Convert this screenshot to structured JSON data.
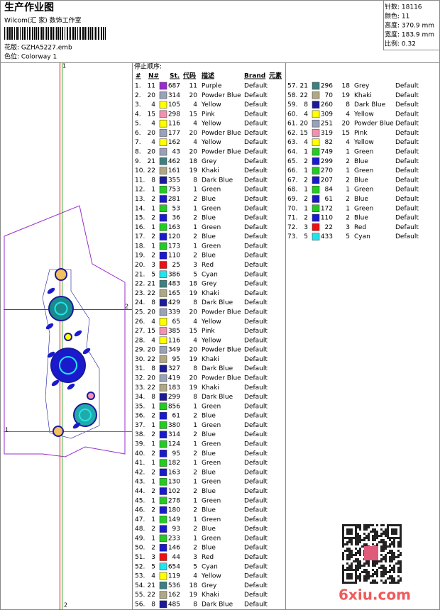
{
  "header": {
    "title": "生产作业图",
    "studio": "Wilcom(汇 家) 数饰工作室",
    "pattern": "花版:  GZHA5227.emb",
    "colorway": "色位:  Colorway 1",
    "stats": [
      "针数:  18116",
      "颜色:  11",
      "高度:  370.9 mm",
      "宽度:  183.9 mm",
      "比例:  0.32"
    ]
  },
  "design": {
    "markers": [
      "1",
      "2",
      "1",
      "2"
    ]
  },
  "table": {
    "caption": "停止顺序:",
    "columns": [
      "#",
      "N#",
      "St.",
      "代码",
      "描述",
      "Brand",
      "元素"
    ],
    "rows": [
      [
        "1.",
        "11",
        "687",
        "11",
        "Purple",
        "Default"
      ],
      [
        "2.",
        "20",
        "314",
        "20",
        "Powder Blue",
        "Default"
      ],
      [
        "3.",
        "4",
        "105",
        "4",
        "Yellow",
        "Default"
      ],
      [
        "4.",
        "15",
        "298",
        "15",
        "Pink",
        "Default"
      ],
      [
        "5.",
        "4",
        "116",
        "4",
        "Yellow",
        "Default"
      ],
      [
        "6.",
        "20",
        "177",
        "20",
        "Powder Blue",
        "Default"
      ],
      [
        "7.",
        "4",
        "162",
        "4",
        "Yellow",
        "Default"
      ],
      [
        "8.",
        "20",
        "43",
        "20",
        "Powder Blue",
        "Default"
      ],
      [
        "9.",
        "21",
        "462",
        "18",
        "Grey",
        "Default"
      ],
      [
        "10.",
        "22",
        "161",
        "19",
        "Khaki",
        "Default"
      ],
      [
        "11.",
        "8",
        "355",
        "8",
        "Dark Blue",
        "Default"
      ],
      [
        "12.",
        "1",
        "753",
        "1",
        "Green",
        "Default"
      ],
      [
        "13.",
        "2",
        "281",
        "2",
        "Blue",
        "Default"
      ],
      [
        "14.",
        "1",
        "53",
        "1",
        "Green",
        "Default"
      ],
      [
        "15.",
        "2",
        "36",
        "2",
        "Blue",
        "Default"
      ],
      [
        "16.",
        "1",
        "163",
        "1",
        "Green",
        "Default"
      ],
      [
        "17.",
        "2",
        "120",
        "2",
        "Blue",
        "Default"
      ],
      [
        "18.",
        "1",
        "173",
        "1",
        "Green",
        "Default"
      ],
      [
        "19.",
        "2",
        "110",
        "2",
        "Blue",
        "Default"
      ],
      [
        "20.",
        "3",
        "25",
        "3",
        "Red",
        "Default"
      ],
      [
        "21.",
        "5",
        "386",
        "5",
        "Cyan",
        "Default"
      ],
      [
        "22.",
        "21",
        "483",
        "18",
        "Grey",
        "Default"
      ],
      [
        "23.",
        "22",
        "165",
        "19",
        "Khaki",
        "Default"
      ],
      [
        "24.",
        "8",
        "429",
        "8",
        "Dark Blue",
        "Default"
      ],
      [
        "25.",
        "20",
        "339",
        "20",
        "Powder Blue",
        "Default"
      ],
      [
        "26.",
        "4",
        "65",
        "4",
        "Yellow",
        "Default"
      ],
      [
        "27.",
        "15",
        "385",
        "15",
        "Pink",
        "Default"
      ],
      [
        "28.",
        "4",
        "116",
        "4",
        "Yellow",
        "Default"
      ],
      [
        "29.",
        "20",
        "349",
        "20",
        "Powder Blue",
        "Default"
      ],
      [
        "30.",
        "22",
        "95",
        "19",
        "Khaki",
        "Default"
      ],
      [
        "31.",
        "8",
        "327",
        "8",
        "Dark Blue",
        "Default"
      ],
      [
        "32.",
        "20",
        "419",
        "20",
        "Powder Blue",
        "Default"
      ],
      [
        "33.",
        "22",
        "183",
        "19",
        "Khaki",
        "Default"
      ],
      [
        "34.",
        "8",
        "299",
        "8",
        "Dark Blue",
        "Default"
      ],
      [
        "35.",
        "1",
        "856",
        "1",
        "Green",
        "Default"
      ],
      [
        "36.",
        "2",
        "61",
        "2",
        "Blue",
        "Default"
      ],
      [
        "37.",
        "1",
        "380",
        "1",
        "Green",
        "Default"
      ],
      [
        "38.",
        "2",
        "314",
        "2",
        "Blue",
        "Default"
      ],
      [
        "39.",
        "1",
        "124",
        "1",
        "Green",
        "Default"
      ],
      [
        "40.",
        "2",
        "95",
        "2",
        "Blue",
        "Default"
      ],
      [
        "41.",
        "1",
        "182",
        "1",
        "Green",
        "Default"
      ],
      [
        "42.",
        "2",
        "163",
        "2",
        "Blue",
        "Default"
      ],
      [
        "43.",
        "1",
        "130",
        "1",
        "Green",
        "Default"
      ],
      [
        "44.",
        "2",
        "102",
        "2",
        "Blue",
        "Default"
      ],
      [
        "45.",
        "1",
        "278",
        "1",
        "Green",
        "Default"
      ],
      [
        "46.",
        "2",
        "180",
        "2",
        "Blue",
        "Default"
      ],
      [
        "47.",
        "1",
        "149",
        "1",
        "Green",
        "Default"
      ],
      [
        "48.",
        "2",
        "93",
        "2",
        "Blue",
        "Default"
      ],
      [
        "49.",
        "1",
        "233",
        "1",
        "Green",
        "Default"
      ],
      [
        "50.",
        "2",
        "146",
        "2",
        "Blue",
        "Default"
      ],
      [
        "51.",
        "3",
        "44",
        "3",
        "Red",
        "Default"
      ],
      [
        "52.",
        "5",
        "654",
        "5",
        "Cyan",
        "Default"
      ],
      [
        "53.",
        "4",
        "119",
        "4",
        "Yellow",
        "Default"
      ],
      [
        "54.",
        "21",
        "536",
        "18",
        "Grey",
        "Default"
      ],
      [
        "55.",
        "22",
        "162",
        "19",
        "Khaki",
        "Default"
      ],
      [
        "56.",
        "8",
        "485",
        "8",
        "Dark Blue",
        "Default"
      ],
      [
        "57.",
        "21",
        "296",
        "18",
        "Grey",
        "Default"
      ],
      [
        "58.",
        "22",
        "70",
        "19",
        "Khaki",
        "Default"
      ],
      [
        "59.",
        "8",
        "260",
        "8",
        "Dark Blue",
        "Default"
      ],
      [
        "60.",
        "4",
        "309",
        "4",
        "Yellow",
        "Default"
      ],
      [
        "61.",
        "20",
        "251",
        "20",
        "Powder Blue",
        "Default"
      ],
      [
        "62.",
        "15",
        "319",
        "15",
        "Pink",
        "Default"
      ],
      [
        "63.",
        "4",
        "82",
        "4",
        "Yellow",
        "Default"
      ],
      [
        "64.",
        "1",
        "749",
        "1",
        "Green",
        "Default"
      ],
      [
        "65.",
        "2",
        "299",
        "2",
        "Blue",
        "Default"
      ],
      [
        "66.",
        "1",
        "270",
        "1",
        "Green",
        "Default"
      ],
      [
        "67.",
        "2",
        "207",
        "2",
        "Blue",
        "Default"
      ],
      [
        "68.",
        "1",
        "84",
        "1",
        "Green",
        "Default"
      ],
      [
        "69.",
        "2",
        "61",
        "2",
        "Blue",
        "Default"
      ],
      [
        "70.",
        "1",
        "172",
        "1",
        "Green",
        "Default"
      ],
      [
        "71.",
        "2",
        "110",
        "2",
        "Blue",
        "Default"
      ],
      [
        "72.",
        "3",
        "22",
        "3",
        "Red",
        "Default"
      ],
      [
        "73.",
        "5",
        "433",
        "5",
        "Cyan",
        "Default"
      ]
    ]
  },
  "swatch_colors": {
    "11": "#9a2ccc",
    "20": "#9aa2b8",
    "4": "#ffff00",
    "15": "#f291b0",
    "18": "#3f7f7f",
    "19": "#b0a884",
    "8": "#1a1a9a",
    "1": "#22cc22",
    "2": "#1a1acc",
    "3": "#ee1111",
    "5": "#22e4ec"
  },
  "watermark": "6xiu.com"
}
